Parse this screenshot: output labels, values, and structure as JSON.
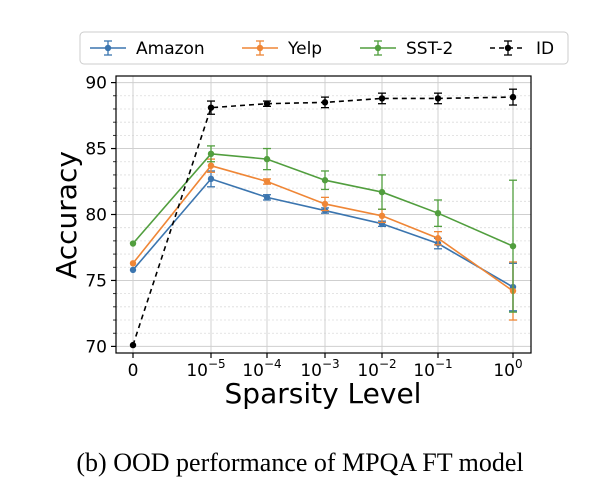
{
  "chart_data": {
    "type": "line",
    "xlabel": "Sparsity Level",
    "ylabel": "Accuracy",
    "ylim": [
      69.5,
      90.5
    ],
    "yticks": [
      70,
      75,
      80,
      85,
      90
    ],
    "x_tick_labels": [
      {
        "base": "0",
        "exp": ""
      },
      {
        "base": "10",
        "exp": "−5"
      },
      {
        "base": "10",
        "exp": "−4"
      },
      {
        "base": "10",
        "exp": "−3"
      },
      {
        "base": "10",
        "exp": "−2"
      },
      {
        "base": "10",
        "exp": "−1"
      },
      {
        "base": "10",
        "exp": "0"
      }
    ],
    "x_scale": "symlog",
    "x_values": [
      0,
      3e-05,
      0.0001,
      0.001,
      0.01,
      0.1,
      1
    ],
    "grid": true,
    "legend_position": "top",
    "series": [
      {
        "name": "Amazon",
        "color": "#3b75af",
        "style": "solid",
        "values": [
          75.8,
          82.7,
          81.3,
          80.3,
          79.3,
          77.8,
          74.5
        ],
        "errors": [
          0,
          0.6,
          0.2,
          0.2,
          0.2,
          0.4,
          1.8
        ]
      },
      {
        "name": "Yelp",
        "color": "#ef8636",
        "style": "solid",
        "values": [
          76.3,
          83.7,
          82.5,
          80.8,
          79.9,
          78.2,
          74.2
        ],
        "errors": [
          0,
          0.5,
          0.2,
          0.5,
          0.5,
          0.5,
          2.2
        ]
      },
      {
        "name": "SST-2",
        "color": "#519e3e",
        "style": "solid",
        "values": [
          77.8,
          84.6,
          84.2,
          82.6,
          81.7,
          80.1,
          77.6
        ],
        "errors": [
          0,
          0.6,
          0.8,
          0.7,
          1.3,
          1.0,
          5.0
        ]
      },
      {
        "name": "ID",
        "color": "#000000",
        "style": "dashed",
        "values": [
          70.1,
          88.1,
          88.4,
          88.5,
          88.8,
          88.8,
          88.9
        ],
        "errors": [
          0,
          0.5,
          0.2,
          0.4,
          0.4,
          0.4,
          0.6
        ]
      }
    ]
  },
  "caption": "(b) OOD performance of MPQA FT model"
}
